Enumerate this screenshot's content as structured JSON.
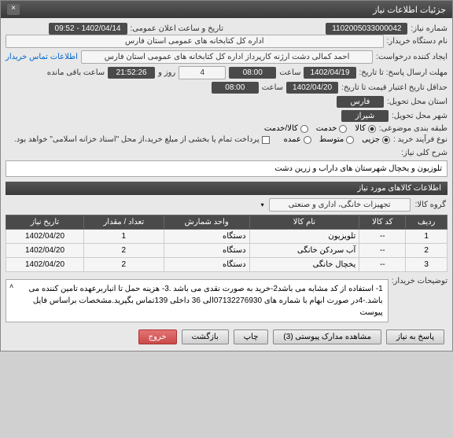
{
  "titlebar": {
    "title": "جزئیات اطلاعات نیاز"
  },
  "fields": {
    "need_no_label": "شماره نیاز:",
    "need_no": "1102005033000042",
    "announce_label": "تاریخ و ساعت اعلان عمومی:",
    "announce": "1402/04/14 - 09:52",
    "buyer_label": "نام دستگاه خریدار:",
    "buyer": "اداره کل کتابخانه های عمومی استان فارس",
    "creator_label": "ایجاد کننده درخواست:",
    "creator": "احمد  کمالی دشت ارژنه  کارپرداز اداره کل کتابخانه های عمومی استان فارس",
    "contact_link": "اطلاعات تماس خریدار",
    "deadline_label": "مهلت ارسال پاسخ: تا تاریخ:",
    "deadline_date": "1402/04/19",
    "time_label": "ساعت",
    "deadline_time": "08:00",
    "days_label": "روز و",
    "days": "4",
    "remaining_time": "21:52:26",
    "remaining_label": "ساعت باقی مانده",
    "validity_label": "حداقل تاریخ اعتبار قیمت تا تاریخ:",
    "validity_date": "1402/04/20",
    "validity_time": "08:00",
    "province_label": "استان محل تحویل:",
    "province": "فارس",
    "city_label": "شهر محل تحویل:",
    "city": "شیراز",
    "topic_label": "طبقه بندی موضوعی:",
    "topic_goods": "کالا",
    "topic_service": "خدمت",
    "topic_goods_service": "کالا/خدمت",
    "purchase_type_label": "نوع فرآیند خرید :",
    "pt_partial": "جزیی",
    "pt_medium": "متوسط",
    "pt_major": "عمده",
    "payment_note": "پرداخت تمام یا بخشی از مبلغ خرید،از محل \"اسناد خزانه اسلامی\" خواهد بود.",
    "desc_label": "شرح کلی نیاز:",
    "desc": "تلوزیون و یخچال شهرستان های داراب و زرین دشت",
    "section_title": "اطلاعات کالاهای مورد نیاز",
    "group_label": "گروه کالا:",
    "group": "تجهیزات خانگی، اداری و صنعتی",
    "notes_label": "توضیحات خریدار:",
    "notes": "1- استفاده از کد مشابه می باشد2-خرید به صورت نقدی می باشد .3- هزینه حمل تا انباربرعهده تامین کننده می باشد.-4در صورت ابهام با شماره های 07132276930الی 36 داخلی 139تماس بگیرید.مشخصات براساس فایل پیوست"
  },
  "table": {
    "headers": {
      "row": "ردیف",
      "code": "کد کالا",
      "name": "نام کالا",
      "unit": "واحد شمارش",
      "qty": "تعداد / مقدار",
      "date": "تاریخ نیاز"
    },
    "rows": [
      {
        "n": "1",
        "code": "--",
        "name": "تلویزیون",
        "unit": "دستگاه",
        "qty": "1",
        "date": "1402/04/20"
      },
      {
        "n": "2",
        "code": "--",
        "name": "آب سردکن خانگی",
        "unit": "دستگاه",
        "qty": "2",
        "date": "1402/04/20"
      },
      {
        "n": "3",
        "code": "--",
        "name": "یخچال خانگی",
        "unit": "دستگاه",
        "qty": "2",
        "date": "1402/04/20"
      }
    ]
  },
  "buttons": {
    "reply": "پاسخ به نیاز",
    "attachments": "مشاهده مدارک پیوستی (3)",
    "print": "چاپ",
    "back": "بازگشت",
    "exit": "خروج"
  }
}
